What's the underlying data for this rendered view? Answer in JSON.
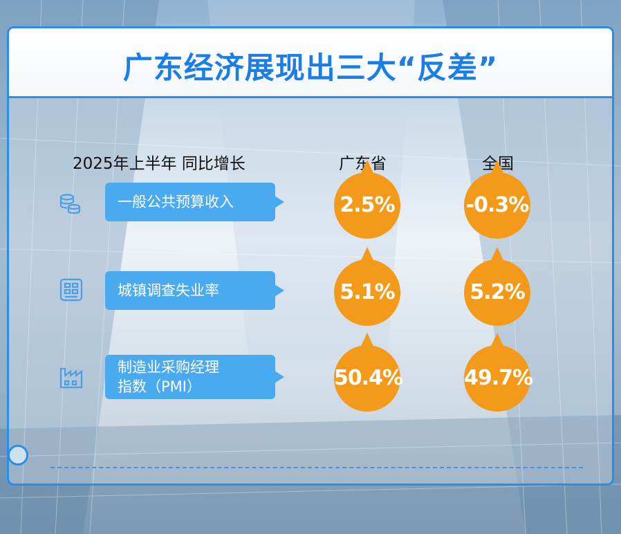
{
  "title": "广东经济展现出三大“反差”",
  "column_headers": {
    "metric": "2025年上半年 同比增长",
    "province": "广东省",
    "nation": "全国"
  },
  "rows": [
    {
      "icon": "coins-stack-icon",
      "label_line1": "一般公共预算收入",
      "label_line2": "",
      "province": "2.5%",
      "nation": "-0.3%"
    },
    {
      "icon": "building-grid-icon",
      "label_line1": "城镇调查失业率",
      "label_line2": "",
      "province": "5.1%",
      "nation": "5.2%"
    },
    {
      "icon": "factory-icon",
      "label_line1": "制造业采购经理",
      "label_line2": "指数（PMI）",
      "province": "50.4%",
      "nation": "49.7%"
    }
  ],
  "colors": {
    "accent_blue": "#2a8ee8",
    "label_blue": "#4aaaf0",
    "bubble_orange": "#f39a1a",
    "title_blue": "#1d7de6"
  }
}
